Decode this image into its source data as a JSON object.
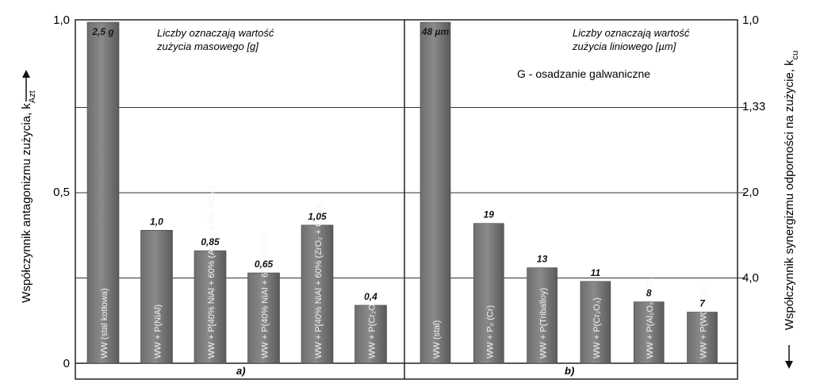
{
  "y_left_label": "Współczynnik antagonizmu zużycia,  k",
  "y_left_label_sub": "Azt",
  "y_right_label": "Współczynnik synergizmu odporności na zużycie,  k",
  "y_right_label_sub": "cu",
  "left_ticks": [
    "1,0",
    "0,5",
    "0"
  ],
  "right_ticks": [
    "1,0",
    "1,33",
    "2,0",
    "4,0"
  ],
  "chart_data": [
    {
      "type": "bar",
      "panel": "a)",
      "note_line1": "Liczby oznaczają wartość",
      "note_line2": "zużycia masowego [g]",
      "ylim": [
        0,
        1.0
      ],
      "series": [
        {
          "values": [
            1.0,
            0.39,
            0.33,
            0.265,
            0.405,
            0.17
          ],
          "data_labels": [
            "2,5 g",
            "1,0",
            "0,85",
            "0,65",
            "1,05",
            "0,4"
          ]
        }
      ],
      "categories": [
        "WW (stal kotłowa)",
        "WW + P(NiAl)",
        "WW + P[40% NiAl + 60% (Al₂O₃ + 3% TiO₂)]",
        "WW + P(40% NiAl + 60% Cr₂O₃)",
        "WW + P[40% NiAl + 60% (ZrO₂ + CaO)]",
        "WW + P(Cr₂O₃)"
      ]
    },
    {
      "type": "bar",
      "panel": "b)",
      "note_line1": "Liczby oznaczają wartość",
      "note_line2": "zużycia liniowego [µm]",
      "note_line3": "G - osadzanie galwaniczne",
      "ylim": [
        0,
        1.0
      ],
      "series": [
        {
          "values": [
            1.0,
            0.41,
            0.28,
            0.24,
            0.18,
            0.15
          ],
          "data_labels": [
            "48 µm",
            "19",
            "13",
            "11",
            "8",
            "7"
          ]
        }
      ],
      "categories": [
        "WW (stal)",
        "WW + P₀ (Cr)",
        "WW + P(Triballoy)",
        "WW + P(Cr₂O₃)",
        "WW + P(Al₂O₃ + TiO₂)",
        "WW + P(WC - Co)"
      ]
    }
  ]
}
